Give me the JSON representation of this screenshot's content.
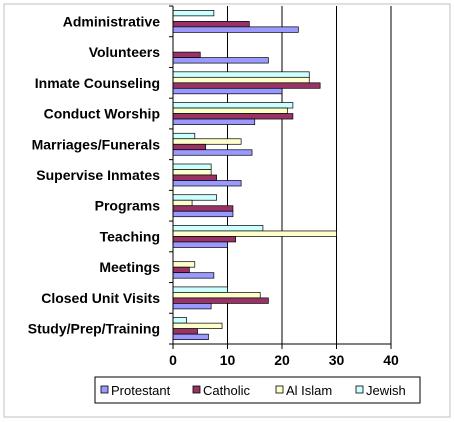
{
  "chart_data": {
    "type": "bar",
    "orientation": "horizontal",
    "categories": [
      "Administrative",
      "Volunteers",
      "Inmate Counseling",
      "Conduct Worship",
      "Marriages/Funerals",
      "Supervise Inmates",
      "Programs",
      "Teaching",
      "Meetings",
      "Closed Unit Visits",
      "Study/Prep/Training"
    ],
    "series": [
      {
        "name": "Protestant",
        "color": "#9999ff",
        "values": [
          23,
          17.5,
          20,
          15,
          14.5,
          12.5,
          11,
          10,
          7.5,
          7,
          6.5
        ]
      },
      {
        "name": "Catholic",
        "color": "#993366",
        "values": [
          14,
          5,
          27,
          22,
          6,
          8,
          11,
          11.5,
          3,
          17.5,
          4.5
        ]
      },
      {
        "name": "Al Islam",
        "color": "#ffffcc",
        "values": [
          0,
          0,
          25,
          21,
          12.5,
          7,
          3.5,
          30,
          4,
          16,
          9
        ]
      },
      {
        "name": "Jewish",
        "color": "#ccffff",
        "values": [
          7.5,
          0,
          25,
          22,
          4,
          7,
          8,
          16.5,
          0,
          10,
          2.5
        ]
      }
    ],
    "xlim": [
      0,
      40
    ],
    "xticks": [
      0,
      10,
      20,
      30,
      40
    ],
    "grid": true,
    "legend_position": "bottom"
  }
}
